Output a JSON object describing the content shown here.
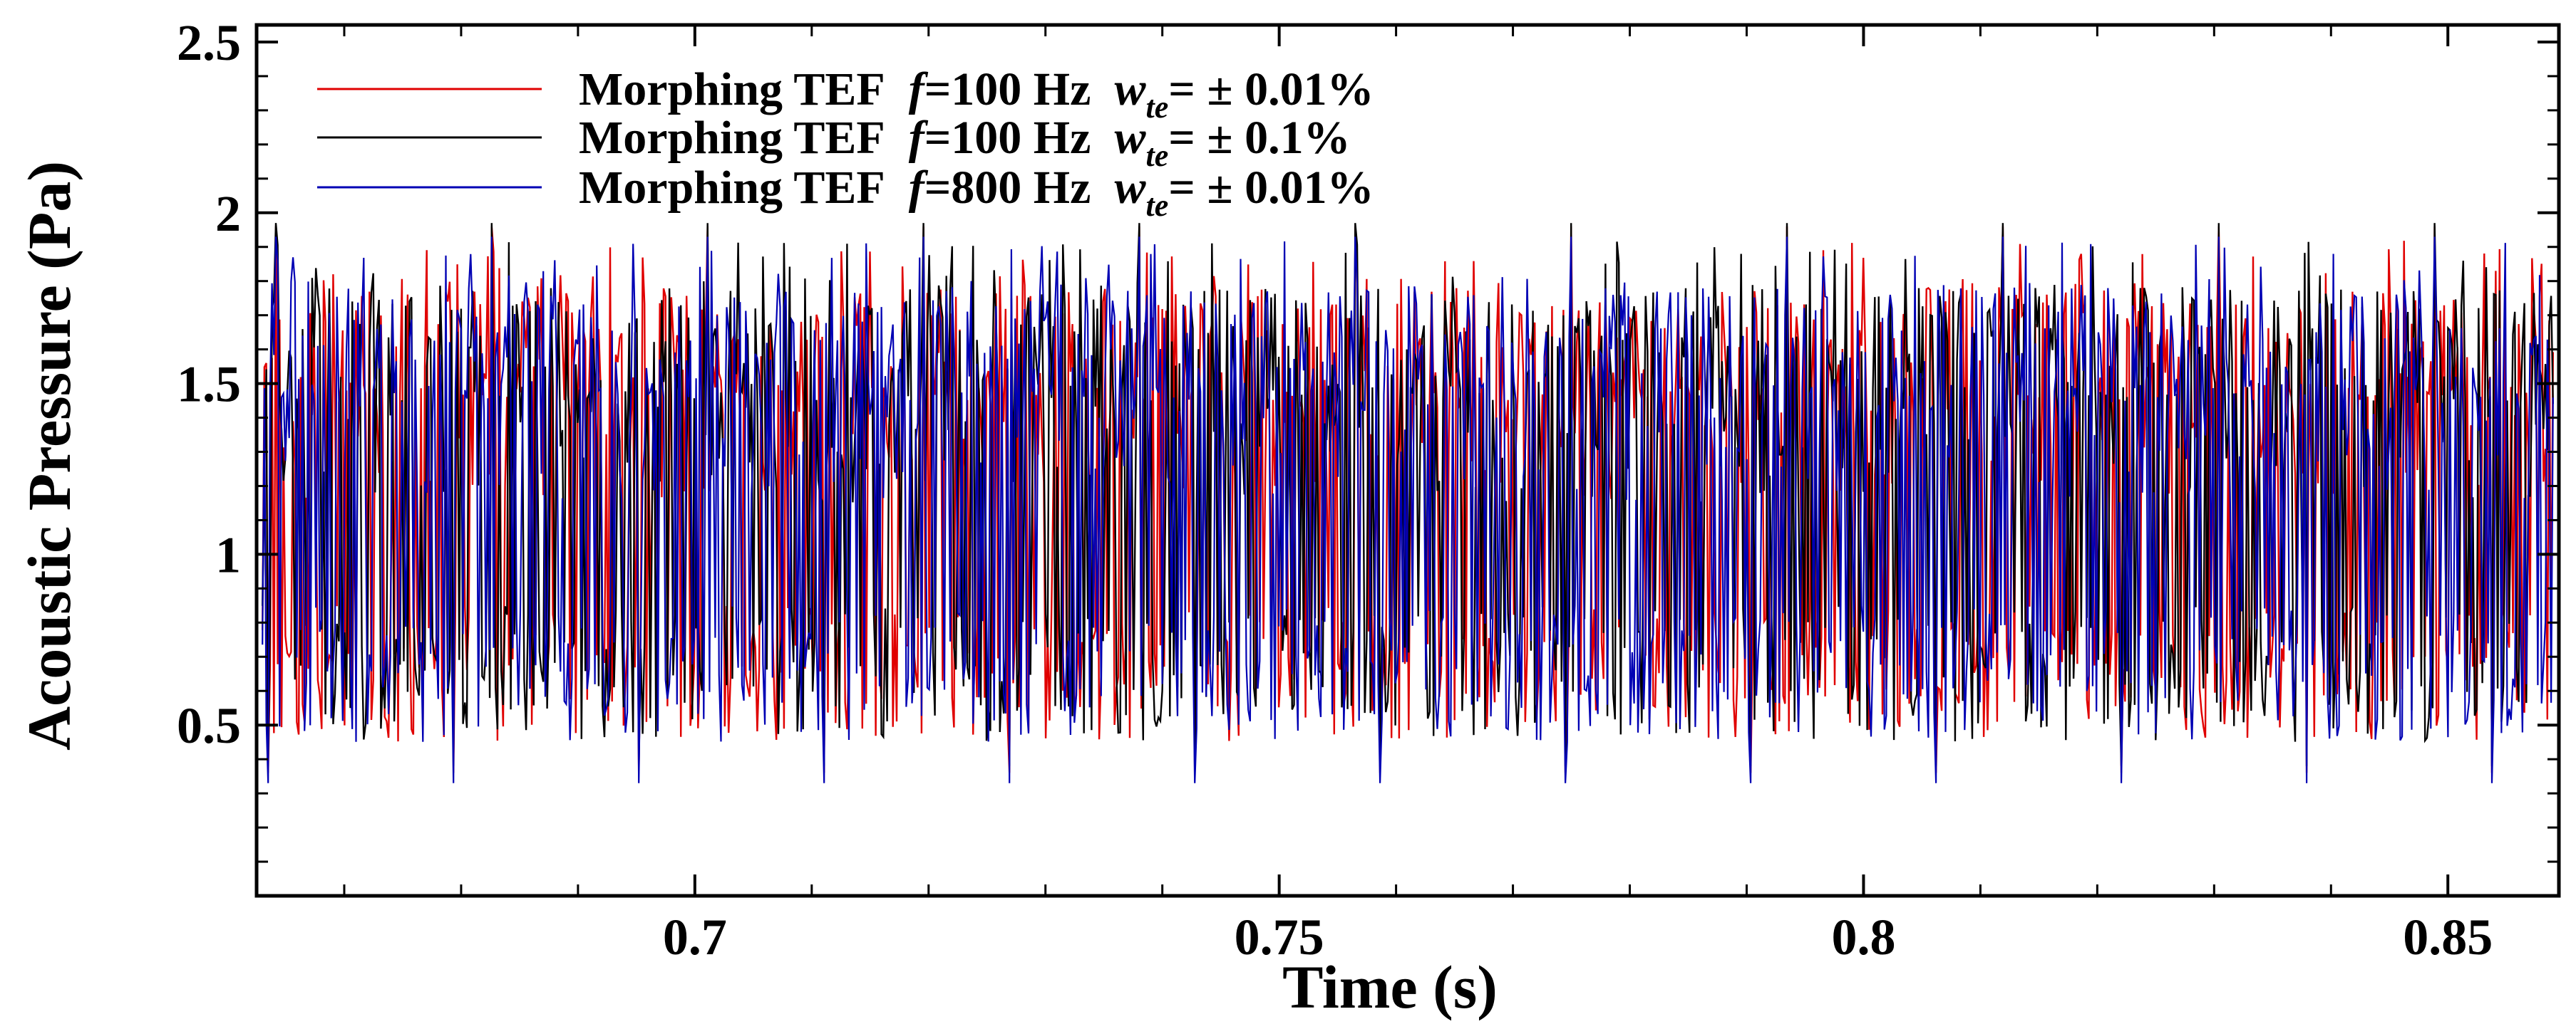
{
  "chart_data": {
    "type": "line",
    "title": "",
    "xlabel": "Time (s)",
    "ylabel": "Acoustic Pressure (Pa)",
    "xlim": [
      0.6625,
      0.8595
    ],
    "ylim": [
      0,
      2.55
    ],
    "x_ticks": [
      0.7,
      0.75,
      0.8,
      0.85
    ],
    "x_tick_labels": [
      "0.7",
      "0.75",
      "0.8",
      "0.85"
    ],
    "y_ticks": [
      0.5,
      1,
      1.5,
      2,
      2.5
    ],
    "y_tick_labels": [
      "0.5",
      "1",
      "1.5",
      "2",
      "2.5"
    ],
    "x_minor_step": 0.01,
    "y_minor_step": 0.1,
    "grid": false,
    "legend_position": "top-left",
    "sample_count": 1200,
    "value_range_note": "signals oscillate between about 0.35 and 2.0 Pa, centred near 1.4 Pa",
    "series": [
      {
        "name": "Morphing TEF f=100 Hz w_te=± 0.01%",
        "legend": {
          "pre": "Morphing TEF",
          "f_sym": "f",
          "f_val": "=100 Hz",
          "w_sym": "w",
          "w_sub": "te",
          "w_val": "= ± 0.01%"
        },
        "color": "#e00000",
        "seed": 17,
        "mean": 1.38,
        "min": 0.36,
        "max": 1.96
      },
      {
        "name": "Morphing TEF f=100 Hz w_te=± 0.1%",
        "legend": {
          "pre": "Morphing TEF",
          "f_sym": "f",
          "f_val": "=100 Hz",
          "w_sym": "w",
          "w_sub": "te",
          "w_val": "= ± 0.1%"
        },
        "color": "#000000",
        "seed": 41,
        "mean": 1.38,
        "min": 0.38,
        "max": 1.97
      },
      {
        "name": "Morphing TEF f=800 Hz w_te=± 0.01%",
        "legend": {
          "pre": "Morphing TEF",
          "f_sym": "f",
          "f_val": "=800 Hz",
          "w_sym": "w",
          "w_sub": "te",
          "w_val": "= ± 0.01%"
        },
        "color": "#0000b4",
        "seed": 93,
        "mean": 1.4,
        "min": 0.33,
        "max": 1.93
      }
    ]
  }
}
